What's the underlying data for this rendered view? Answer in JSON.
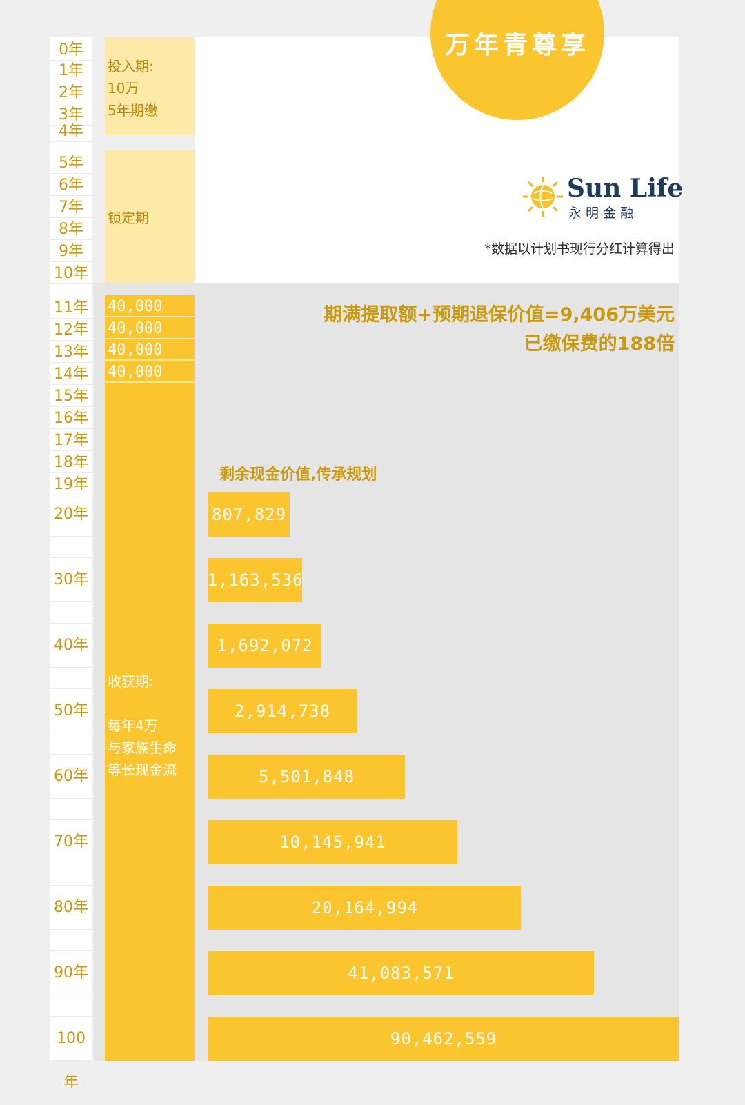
{
  "header": {
    "title": "万年青尊享",
    "brand_name": "Sun Life",
    "brand_sub": "永 明 金 融",
    "note": "*数据以计划书现行分红计算得出"
  },
  "headline": {
    "line1": "期满提取额+预期退保价值=9,406万美元",
    "line2": "已缴保费的188倍"
  },
  "phases": {
    "invest": "投入期:\n10万\n5年期缴",
    "lock": "锁定期",
    "harvest": "收获期:\n\n每年4万\n与家族生命\n等长现金流"
  },
  "years_top": [
    "0年",
    "1年",
    "2年",
    "3年",
    "4年",
    "5年",
    "6年",
    "7年",
    "8年",
    "9年",
    "10年",
    "11年",
    "12年",
    "13年",
    "14年",
    "15年",
    "16年",
    "17年",
    "18年",
    "19年"
  ],
  "payouts": [
    "40,000",
    "40,000",
    "40,000",
    "40,000"
  ],
  "chart_data": {
    "type": "bar",
    "title": "剩余现金价值,传承规划",
    "categories": [
      "20年",
      "30年",
      "40年",
      "50年",
      "60年",
      "70年",
      "80年",
      "90年",
      "100年"
    ],
    "values": [
      807829,
      1163536,
      1692072,
      2914738,
      5501848,
      10145941,
      20164994,
      41083571,
      90462559
    ],
    "labels": [
      "807,829",
      "1,163,536",
      "1,692,072",
      "2,914,738",
      "5,501,848",
      "10,145,941",
      "20,164,994",
      "41,083,571",
      "90,462,559"
    ],
    "scale": "log",
    "bar_color": "#fbc52f"
  },
  "colors": {
    "accent": "#fbc52f",
    "accent_light": "#fde9a8",
    "text_gold": "#c99a10",
    "panel_gray": "#e6e5e6"
  }
}
